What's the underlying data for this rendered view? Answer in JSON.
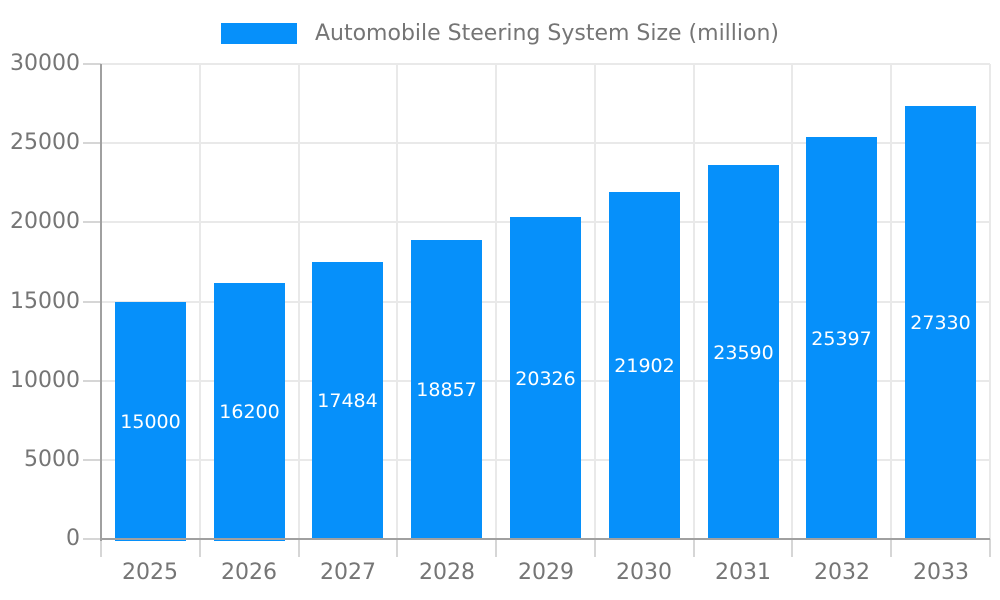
{
  "legend": {
    "label": "Automobile Steering System Size (million)",
    "swatch_icon": "legend-color-swatch"
  },
  "chart_data": {
    "type": "bar",
    "title": "",
    "series_name": "Automobile Steering System Size (million)",
    "categories": [
      "2025",
      "2026",
      "2027",
      "2028",
      "2029",
      "2030",
      "2031",
      "2032",
      "2033"
    ],
    "values": [
      15000,
      16200,
      17484,
      18857,
      20326,
      21902,
      23590,
      25397,
      27330
    ],
    "bar_value_labels": [
      "15000",
      "16200",
      "17484",
      "18857",
      "20326",
      "21902",
      "23590",
      "25397",
      "27330"
    ],
    "xlabel": "",
    "ylabel": "",
    "ylim": [
      0,
      30000
    ],
    "yticks": [
      0,
      5000,
      10000,
      15000,
      20000,
      25000,
      30000
    ],
    "ytick_labels": [
      "0",
      "5000",
      "10000",
      "15000",
      "20000",
      "25000",
      "30000"
    ],
    "grid": true,
    "legend_position": "top"
  },
  "colors": {
    "bar": "#0690fa",
    "bar_label": "#ffffff",
    "axis_text": "#757575",
    "legend_text": "#757575",
    "gridline": "#e9e9e9",
    "axis_line": "#a0a0a0",
    "tick": "#d6d6d6",
    "background": "#ffffff"
  }
}
